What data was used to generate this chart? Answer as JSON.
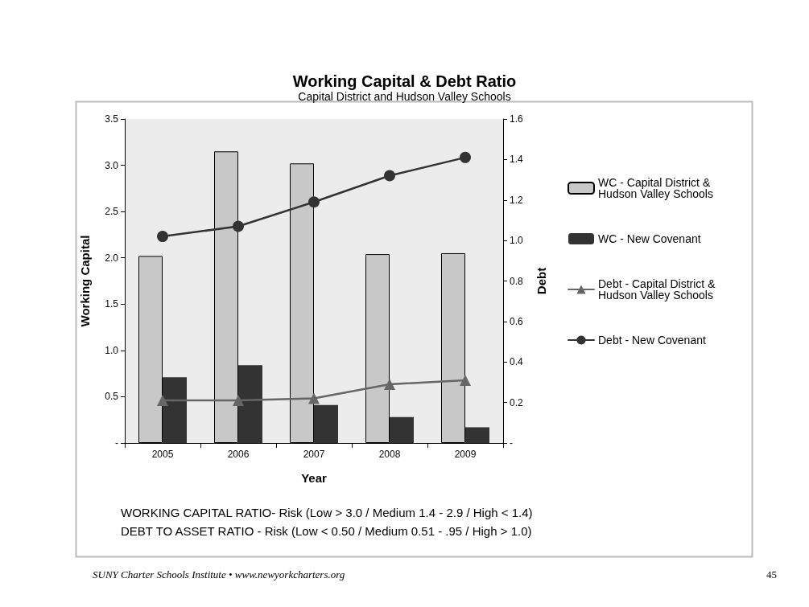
{
  "chart_data": {
    "type": "bar",
    "title": "Working Capital & Debt Ratio",
    "subtitle": "Capital District and Hudson Valley Schools",
    "xlabel": "Year",
    "ylabel": "Working Capital",
    "y2label": "Debt",
    "categories": [
      "2005",
      "2006",
      "2007",
      "2008",
      "2009"
    ],
    "series": [
      {
        "name": "WC - Capital District & Hudson Valley Schools",
        "color": "#c8c8c8",
        "values": [
          2.02,
          3.15,
          3.02,
          2.04,
          2.05
        ]
      },
      {
        "name": "WC - New Covenant",
        "color": "#333333",
        "values": [
          0.71,
          0.84,
          0.41,
          0.28,
          0.17
        ]
      },
      {
        "name": "Debt - Capital District & Hudson Valley Schools",
        "type": "line",
        "axis": "y2",
        "marker": "triangle",
        "color": "#666666",
        "values": [
          0.21,
          0.21,
          0.22,
          0.29,
          0.31
        ]
      },
      {
        "name": "Debt - New Covenant",
        "type": "line",
        "axis": "y2",
        "marker": "circle",
        "color": "#333333",
        "values": [
          1.02,
          1.07,
          1.19,
          1.32,
          1.41
        ]
      }
    ],
    "ylim": [
      0,
      3.5
    ],
    "yticks": [
      {
        "value": 0,
        "label": "-"
      },
      0.5,
      {
        "value": 1,
        "label": "1.0"
      },
      1.5,
      {
        "value": 2,
        "label": "2.0"
      },
      2.5,
      {
        "value": 3,
        "label": "3.0"
      },
      3.5
    ],
    "y2lim": [
      0,
      1.6
    ],
    "y2ticks": [
      {
        "value": 0,
        "label": "-"
      },
      0.2,
      0.4,
      0.6,
      0.8,
      {
        "value": 1,
        "label": "1.0"
      },
      1.2,
      1.4,
      1.6
    ],
    "grid": false,
    "legend": "right",
    "line_style": "solid",
    "annotations": [
      "WORKING CAPITAL RATIO- Risk (Low > 3.0 / Medium 1.4 - 2.9 / High < 1.4)",
      "DEBT TO ASSET RATIO - Risk (Low < 0.50 / Medium 0.51 - .95 / High > 1.0)",
      "SUNY Charter Schools Institute • www.newyorkcharters.org",
      "45"
    ]
  }
}
